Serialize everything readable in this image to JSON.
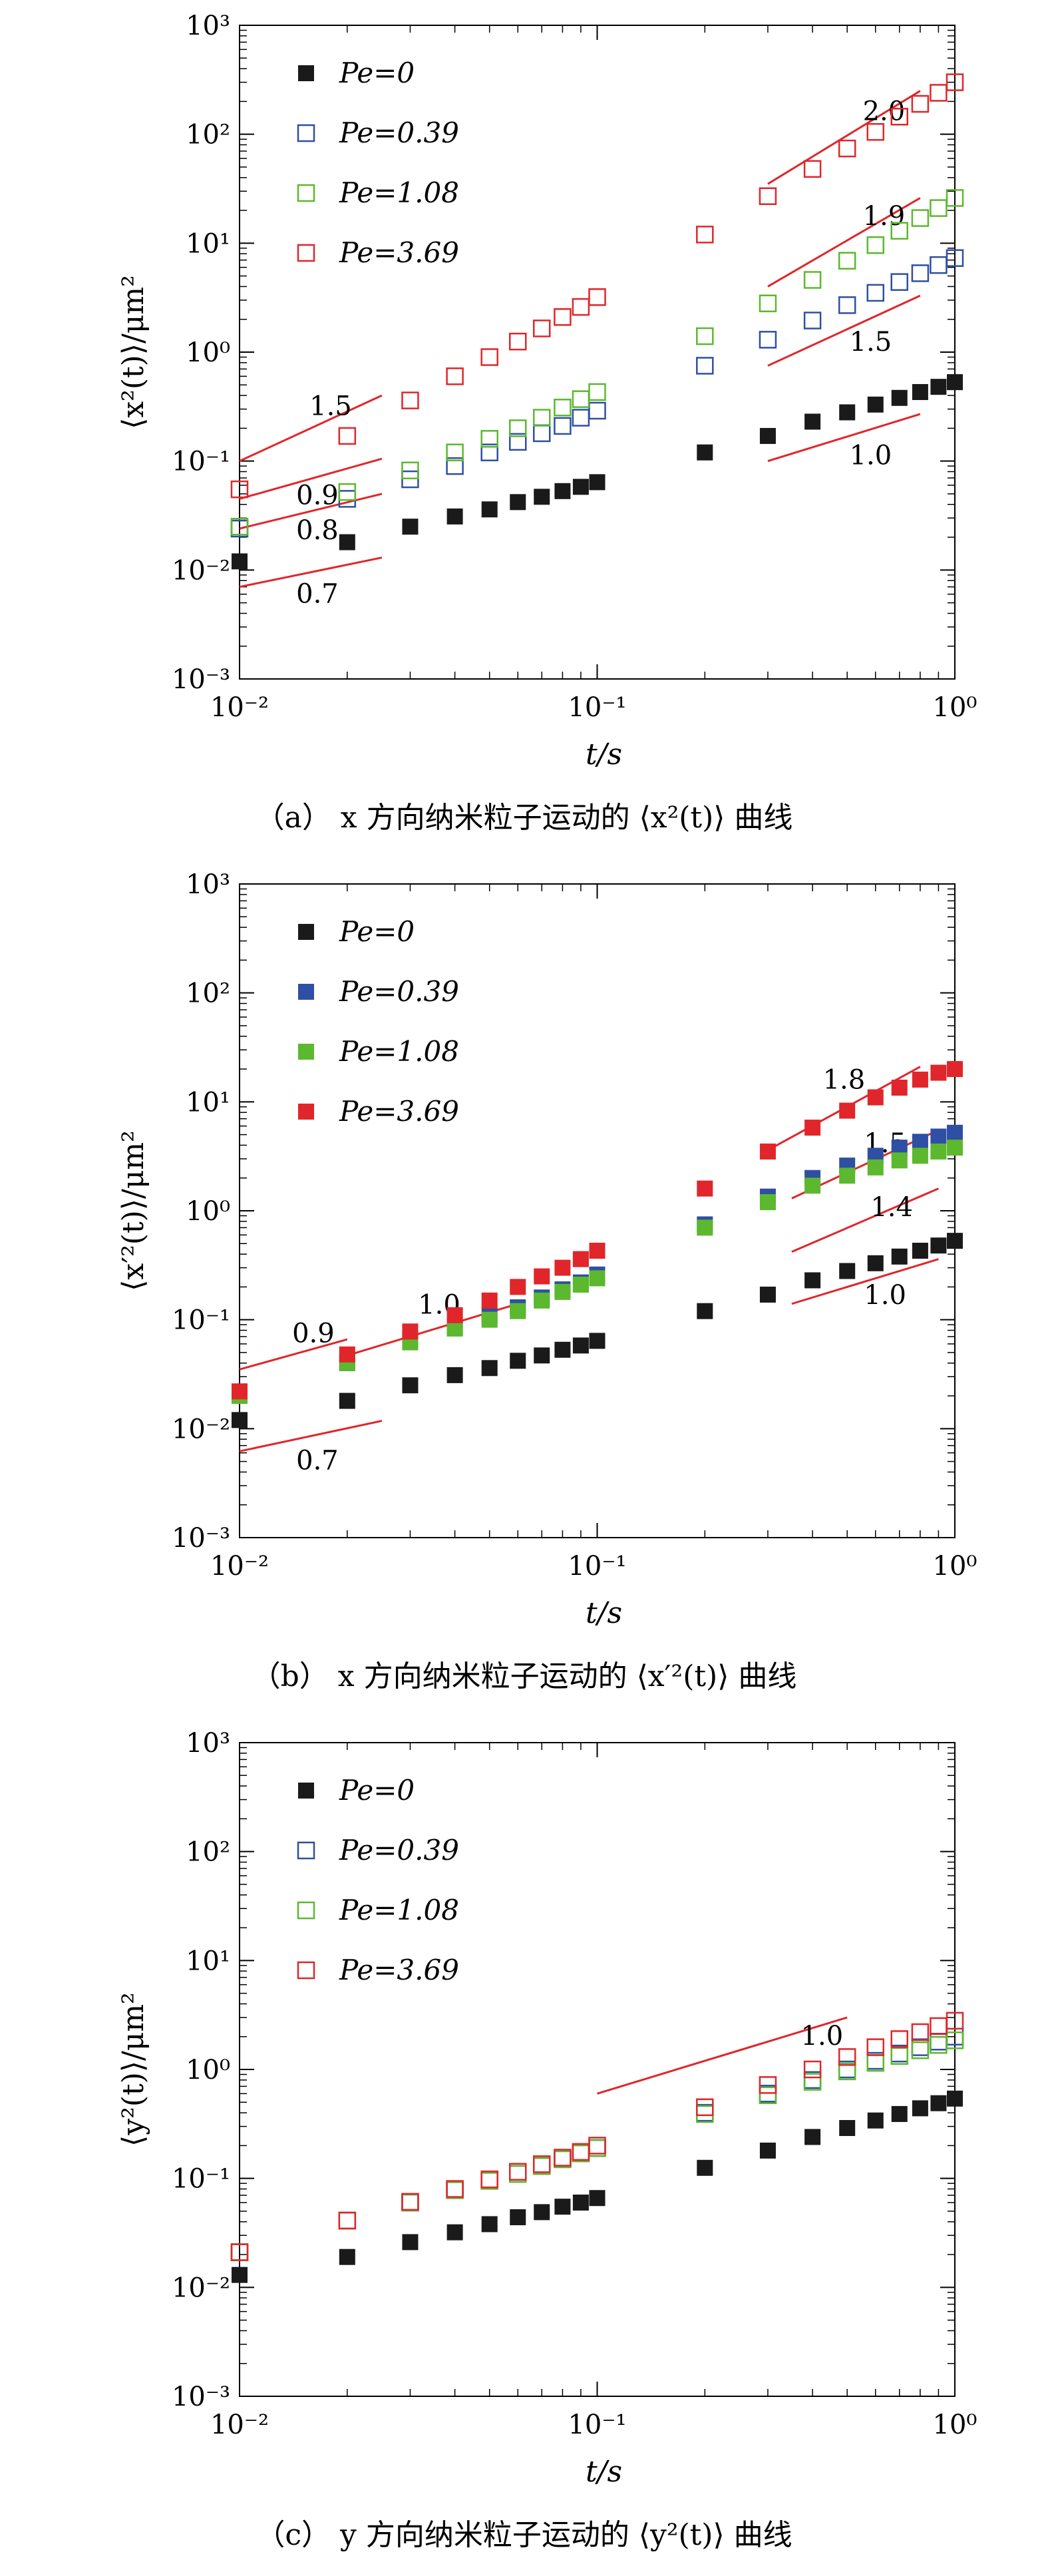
{
  "figure": {
    "captions": [
      "（a） x 方向纳米粒子运动的 ⟨x²(t)⟩ 曲线",
      "（b） x 方向纳米粒子运动的 ⟨x′²(t)⟩ 曲线",
      "（c） y 方向纳米粒子运动的 ⟨y²(t)⟩ 曲线"
    ]
  },
  "chart_data": [
    {
      "type": "scatter",
      "xlabel": "t/s",
      "ylabel": "⟨x²(t)⟩/μm²",
      "xscale": "log",
      "yscale": "log",
      "xlim": [
        0.01,
        1
      ],
      "ylim": [
        0.001,
        1000
      ],
      "x_ticks": [
        "10⁻²",
        "10⁻¹",
        "10⁰"
      ],
      "y_ticks": [
        "10⁻³",
        "10⁻²",
        "10⁻¹",
        "10⁰",
        "10¹",
        "10²",
        "10³"
      ],
      "legend_position": "top-left",
      "x": [
        0.01,
        0.02,
        0.03,
        0.04,
        0.05,
        0.06,
        0.07,
        0.08,
        0.09,
        0.1,
        0.2,
        0.3,
        0.4,
        0.5,
        0.6,
        0.7,
        0.8,
        0.9,
        1.0
      ],
      "series": [
        {
          "name": "Pe=0",
          "marker": "filled-square",
          "color": "#1a1a1a",
          "values": [
            0.012,
            0.018,
            0.025,
            0.031,
            0.036,
            0.042,
            0.047,
            0.053,
            0.058,
            0.064,
            0.12,
            0.17,
            0.23,
            0.28,
            0.33,
            0.38,
            0.43,
            0.48,
            0.53
          ]
        },
        {
          "name": "Pe=0.39",
          "marker": "open-square",
          "color": "#2e4fa3",
          "values": [
            0.024,
            0.045,
            0.068,
            0.09,
            0.12,
            0.15,
            0.18,
            0.21,
            0.25,
            0.29,
            0.75,
            1.3,
            1.95,
            2.7,
            3.5,
            4.4,
            5.3,
            6.3,
            7.3
          ]
        },
        {
          "name": "Pe=1.08",
          "marker": "open-square",
          "color": "#5cb82e",
          "values": [
            0.025,
            0.052,
            0.082,
            0.12,
            0.16,
            0.2,
            0.25,
            0.31,
            0.37,
            0.43,
            1.4,
            2.8,
            4.6,
            6.9,
            9.6,
            13,
            17,
            21,
            26
          ]
        },
        {
          "name": "Pe=3.69",
          "marker": "open-square",
          "color": "#e0262a",
          "values": [
            0.055,
            0.17,
            0.36,
            0.6,
            0.9,
            1.25,
            1.65,
            2.1,
            2.6,
            3.2,
            12,
            27,
            48,
            74,
            105,
            145,
            190,
            240,
            300
          ]
        }
      ],
      "slope_guides": [
        {
          "label": "2.0",
          "from": [
            0.3,
            35
          ],
          "to": [
            0.8,
            250
          ]
        },
        {
          "label": "1.9",
          "from": [
            0.3,
            4
          ],
          "to": [
            0.8,
            26
          ]
        },
        {
          "label": "1.5",
          "from": [
            0.3,
            0.75
          ],
          "to": [
            0.8,
            3.3
          ]
        },
        {
          "label": "1.0",
          "from": [
            0.3,
            0.1
          ],
          "to": [
            0.8,
            0.27
          ]
        },
        {
          "label": "1.5",
          "from": [
            0.01,
            0.1
          ],
          "to": [
            0.025,
            0.4
          ]
        },
        {
          "label": "0.9",
          "from": [
            0.01,
            0.045
          ],
          "to": [
            0.025,
            0.105
          ]
        },
        {
          "label": "0.8",
          "from": [
            0.01,
            0.024
          ],
          "to": [
            0.025,
            0.05
          ]
        },
        {
          "label": "0.7",
          "from": [
            0.01,
            0.007
          ],
          "to": [
            0.025,
            0.013
          ]
        }
      ]
    },
    {
      "type": "scatter",
      "xlabel": "t/s",
      "ylabel": "⟨x′²(t)⟩/μm²",
      "xscale": "log",
      "yscale": "log",
      "xlim": [
        0.01,
        1
      ],
      "ylim": [
        0.001,
        1000
      ],
      "x_ticks": [
        "10⁻²",
        "10⁻¹",
        "10⁰"
      ],
      "y_ticks": [
        "10⁻³",
        "10⁻²",
        "10⁻¹",
        "10⁰",
        "10¹",
        "10²",
        "10³"
      ],
      "legend_position": "top-left",
      "x": [
        0.01,
        0.02,
        0.03,
        0.04,
        0.05,
        0.06,
        0.07,
        0.08,
        0.09,
        0.1,
        0.2,
        0.3,
        0.4,
        0.5,
        0.6,
        0.7,
        0.8,
        0.9,
        1.0
      ],
      "series": [
        {
          "name": "Pe=0",
          "marker": "filled-square",
          "color": "#1a1a1a",
          "values": [
            0.012,
            0.018,
            0.025,
            0.031,
            0.036,
            0.042,
            0.047,
            0.053,
            0.058,
            0.064,
            0.12,
            0.17,
            0.23,
            0.28,
            0.33,
            0.38,
            0.43,
            0.48,
            0.53
          ]
        },
        {
          "name": "Pe=0.39",
          "marker": "filled-square",
          "color": "#2e4fa3",
          "values": [
            0.02,
            0.04,
            0.065,
            0.085,
            0.11,
            0.13,
            0.16,
            0.19,
            0.22,
            0.26,
            0.75,
            1.35,
            2.0,
            2.6,
            3.2,
            3.8,
            4.3,
            4.8,
            5.2
          ]
        },
        {
          "name": "Pe=1.08",
          "marker": "filled-square",
          "color": "#5cb82e",
          "values": [
            0.02,
            0.04,
            0.062,
            0.083,
            0.1,
            0.12,
            0.15,
            0.18,
            0.21,
            0.24,
            0.7,
            1.2,
            1.7,
            2.1,
            2.5,
            2.9,
            3.2,
            3.5,
            3.8
          ]
        },
        {
          "name": "Pe=3.69",
          "marker": "filled-square",
          "color": "#e0262a",
          "values": [
            0.022,
            0.048,
            0.078,
            0.11,
            0.15,
            0.2,
            0.25,
            0.3,
            0.36,
            0.43,
            1.6,
            3.5,
            5.8,
            8.3,
            11,
            13.5,
            16,
            18.5,
            20
          ]
        }
      ],
      "slope_guides": [
        {
          "label": "1.8",
          "from": [
            0.3,
            3.6
          ],
          "to": [
            0.8,
            21
          ]
        },
        {
          "label": "1.5",
          "from": [
            0.35,
            1.3
          ],
          "to": [
            0.9,
            5.5
          ]
        },
        {
          "label": "1.4",
          "from": [
            0.35,
            0.42
          ],
          "to": [
            0.9,
            1.6
          ]
        },
        {
          "label": "1.0",
          "from": [
            0.35,
            0.14
          ],
          "to": [
            0.9,
            0.36
          ]
        },
        {
          "label": "1.0",
          "from": [
            0.02,
            0.047
          ],
          "to": [
            0.06,
            0.14
          ]
        },
        {
          "label": "0.9",
          "from": [
            0.01,
            0.035
          ],
          "to": [
            0.02,
            0.066
          ]
        },
        {
          "label": "0.7",
          "from": [
            0.01,
            0.0062
          ],
          "to": [
            0.025,
            0.0118
          ]
        }
      ]
    },
    {
      "type": "scatter",
      "xlabel": "t/s",
      "ylabel": "⟨y²(t)⟩/μm²",
      "xscale": "log",
      "yscale": "log",
      "xlim": [
        0.01,
        1
      ],
      "ylim": [
        0.001,
        1000
      ],
      "x_ticks": [
        "10⁻²",
        "10⁻¹",
        "10⁰"
      ],
      "y_ticks": [
        "10⁻³",
        "10⁻²",
        "10⁻¹",
        "10⁰",
        "10¹",
        "10²",
        "10³"
      ],
      "legend_position": "top-left",
      "x": [
        0.01,
        0.02,
        0.03,
        0.04,
        0.05,
        0.06,
        0.07,
        0.08,
        0.09,
        0.1,
        0.2,
        0.3,
        0.4,
        0.5,
        0.6,
        0.7,
        0.8,
        0.9,
        1.0
      ],
      "series": [
        {
          "name": "Pe=0",
          "marker": "filled-square",
          "color": "#1a1a1a",
          "values": [
            0.013,
            0.019,
            0.026,
            0.032,
            0.038,
            0.044,
            0.049,
            0.055,
            0.06,
            0.066,
            0.125,
            0.18,
            0.24,
            0.29,
            0.34,
            0.39,
            0.44,
            0.49,
            0.54
          ]
        },
        {
          "name": "Pe=0.39",
          "marker": "open-square",
          "color": "#2e4fa3",
          "values": [
            0.021,
            0.041,
            0.06,
            0.078,
            0.095,
            0.11,
            0.13,
            0.15,
            0.17,
            0.19,
            0.4,
            0.6,
            0.8,
            1.0,
            1.2,
            1.4,
            1.6,
            1.8,
            2.0
          ]
        },
        {
          "name": "Pe=1.08",
          "marker": "open-square",
          "color": "#5cb82e",
          "values": [
            0.021,
            0.041,
            0.06,
            0.078,
            0.095,
            0.11,
            0.13,
            0.15,
            0.17,
            0.19,
            0.39,
            0.58,
            0.77,
            0.96,
            1.15,
            1.33,
            1.5,
            1.68,
            1.85
          ]
        },
        {
          "name": "Pe=3.69",
          "marker": "open-square",
          "color": "#e0262a",
          "values": [
            0.021,
            0.041,
            0.061,
            0.08,
            0.098,
            0.115,
            0.135,
            0.155,
            0.175,
            0.2,
            0.45,
            0.72,
            1.0,
            1.3,
            1.6,
            1.9,
            2.2,
            2.5,
            2.8
          ]
        }
      ],
      "slope_guides": [
        {
          "label": "1.0",
          "from": [
            0.1,
            0.6
          ],
          "to": [
            0.5,
            3.0
          ]
        }
      ]
    }
  ]
}
